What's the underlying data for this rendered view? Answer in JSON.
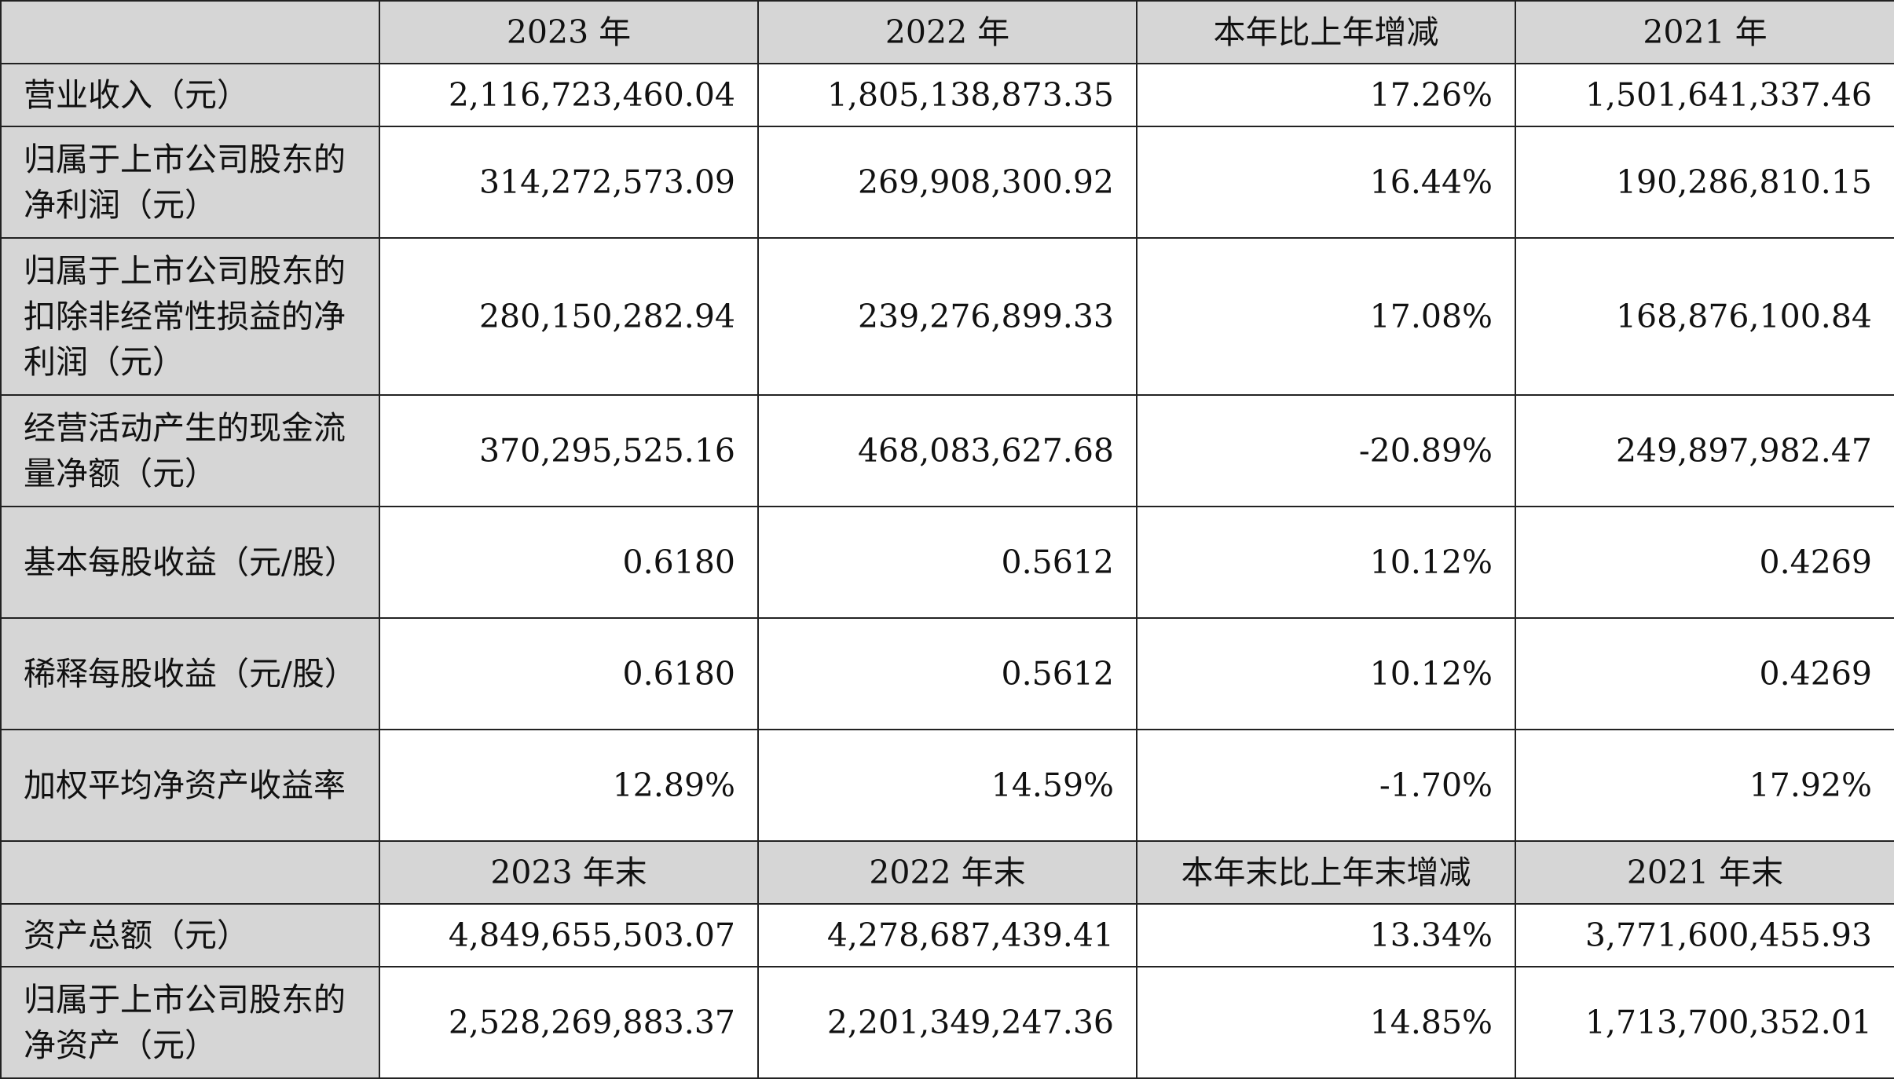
{
  "header1": [
    "",
    "2023 年",
    "2022 年",
    "本年比上年增减",
    "2021 年"
  ],
  "rows1": [
    {
      "label": "营业收入（元）",
      "values": [
        "2,116,723,460.04",
        "1,805,138,873.35",
        "17.26%",
        "1,501,641,337.46"
      ]
    },
    {
      "label": "归属于上市公司股东的净利润（元）",
      "values": [
        "314,272,573.09",
        "269,908,300.92",
        "16.44%",
        "190,286,810.15"
      ]
    },
    {
      "label": "归属于上市公司股东的扣除非经常性损益的净利润（元）",
      "values": [
        "280,150,282.94",
        "239,276,899.33",
        "17.08%",
        "168,876,100.84"
      ]
    },
    {
      "label": "经营活动产生的现金流量净额（元）",
      "values": [
        "370,295,525.16",
        "468,083,627.68",
        "-20.89%",
        "249,897,982.47"
      ]
    },
    {
      "label": "基本每股收益（元/股）",
      "values": [
        "0.6180",
        "0.5612",
        "10.12%",
        "0.4269"
      ]
    },
    {
      "label": "稀释每股收益（元/股）",
      "values": [
        "0.6180",
        "0.5612",
        "10.12%",
        "0.4269"
      ]
    },
    {
      "label": "加权平均净资产收益率",
      "values": [
        "12.89%",
        "14.59%",
        "-1.70%",
        "17.92%"
      ]
    }
  ],
  "header2": [
    "",
    "2023 年末",
    "2022 年末",
    "本年末比上年末增减",
    "2021 年末"
  ],
  "rows2": [
    {
      "label": "资产总额（元）",
      "values": [
        "4,849,655,503.07",
        "4,278,687,439.41",
        "13.34%",
        "3,771,600,455.93"
      ]
    },
    {
      "label": "归属于上市公司股东的净资产（元）",
      "values": [
        "2,528,269,883.37",
        "2,201,349,247.36",
        "14.85%",
        "1,713,700,352.01"
      ]
    }
  ]
}
